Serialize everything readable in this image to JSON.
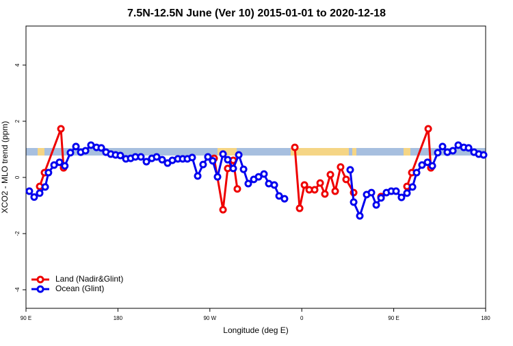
{
  "chart_data": {
    "type": "line",
    "title": "7.5N-12.5N June (Ver 10)   2015-01-01 to 2020-12-18",
    "x_label": "Longitude (deg E)",
    "y_label": "XCO2 - MLO trend (ppm)",
    "xlim": [
      90,
      540
    ],
    "ylim": [
      -4.66,
      5.39
    ],
    "xticks": [
      {
        "value": 90,
        "label": "90 E"
      },
      {
        "value": 180,
        "label": "180"
      },
      {
        "value": 270,
        "label": "90 W"
      },
      {
        "value": 360,
        "label": "0"
      },
      {
        "value": 450,
        "label": "90 E"
      },
      {
        "value": 540,
        "label": "180"
      }
    ],
    "yticks": [
      -4,
      -2,
      0,
      2,
      4
    ],
    "legend": "lower left",
    "series": [
      {
        "name": "Land (Nadir&Glint)",
        "color": "#ee0000",
        "x": [
          103.4,
          108.1,
          124.2,
          126.8,
          null,
          274.2,
          282.9,
          287.5,
          292.9,
          296.9,
          null,
          353.2,
          357.9,
          362.6,
          367.3,
          372.6,
          378,
          382.6,
          388,
          392.7,
          398,
          403.4,
          410.8,
          null,
          437.6,
          null,
          463,
          467.7,
          483.8,
          486.4
        ],
        "values": [
          -0.32,
          0.17,
          1.73,
          0.34,
          null,
          0.68,
          -1.15,
          0.32,
          0.61,
          -0.41,
          null,
          1.07,
          -1.1,
          -0.27,
          -0.44,
          -0.44,
          -0.2,
          -0.59,
          0.1,
          -0.49,
          0.37,
          -0.07,
          -0.54,
          null,
          -0.68,
          null,
          -0.32,
          0.17,
          1.73,
          0.34
        ]
      },
      {
        "name": "Ocean (Glint)",
        "color": "#0000ee",
        "x": [
          93.3,
          98,
          103.4,
          108.8,
          112,
          117.5,
          122.8,
          128,
          133.5,
          138.9,
          143.6,
          148.3,
          153.6,
          159,
          163.7,
          168.3,
          173,
          177.7,
          182.4,
          187.8,
          192.5,
          197.1,
          202.5,
          207.9,
          213.2,
          217.9,
          223.3,
          228.6,
          233.3,
          238.7,
          243.4,
          248,
          252.7,
          258.1,
          263.4,
          268.1,
          272.8,
          277.5,
          282.9,
          287.5,
          292.9,
          298.3,
          303,
          307.6,
          313,
          317.7,
          323,
          327.7,
          333.1,
          337.8,
          343.1,
          null,
          407.4,
          410.8,
          416.8,
          423.5,
          428.2,
          432.9,
          437.6,
          442.9,
          447.6,
          452.3,
          457.6,
          463,
          468.4,
          472.4,
          477.7,
          483.1,
          487.8,
          493.1,
          497.8,
          502.5,
          507.9,
          513.2,
          518.6,
          523.3,
          528.6,
          533.3,
          538
        ],
        "values": [
          -0.49,
          -0.7,
          -0.56,
          -0.34,
          0.17,
          0.44,
          0.54,
          0.41,
          0.88,
          1.1,
          0.9,
          0.95,
          1.15,
          1.07,
          1.05,
          0.9,
          0.83,
          0.8,
          0.78,
          0.66,
          0.68,
          0.73,
          0.73,
          0.56,
          0.68,
          0.73,
          0.63,
          0.51,
          0.61,
          0.66,
          0.66,
          0.66,
          0.71,
          0.05,
          0.46,
          0.73,
          0.59,
          0.02,
          0.83,
          0.63,
          0.32,
          0.8,
          0.29,
          -0.22,
          -0.07,
          0.02,
          0.12,
          -0.22,
          -0.27,
          -0.66,
          -0.76,
          null,
          0.27,
          -0.88,
          -1.37,
          -0.61,
          -0.54,
          -0.98,
          -0.73,
          -0.54,
          -0.49,
          -0.49,
          -0.71,
          -0.56,
          -0.34,
          0.17,
          0.44,
          0.54,
          0.41,
          0.88,
          1.1,
          0.9,
          0.95,
          1.15,
          1.07,
          1.05,
          0.9,
          0.83,
          0.8
        ]
      }
    ]
  }
}
